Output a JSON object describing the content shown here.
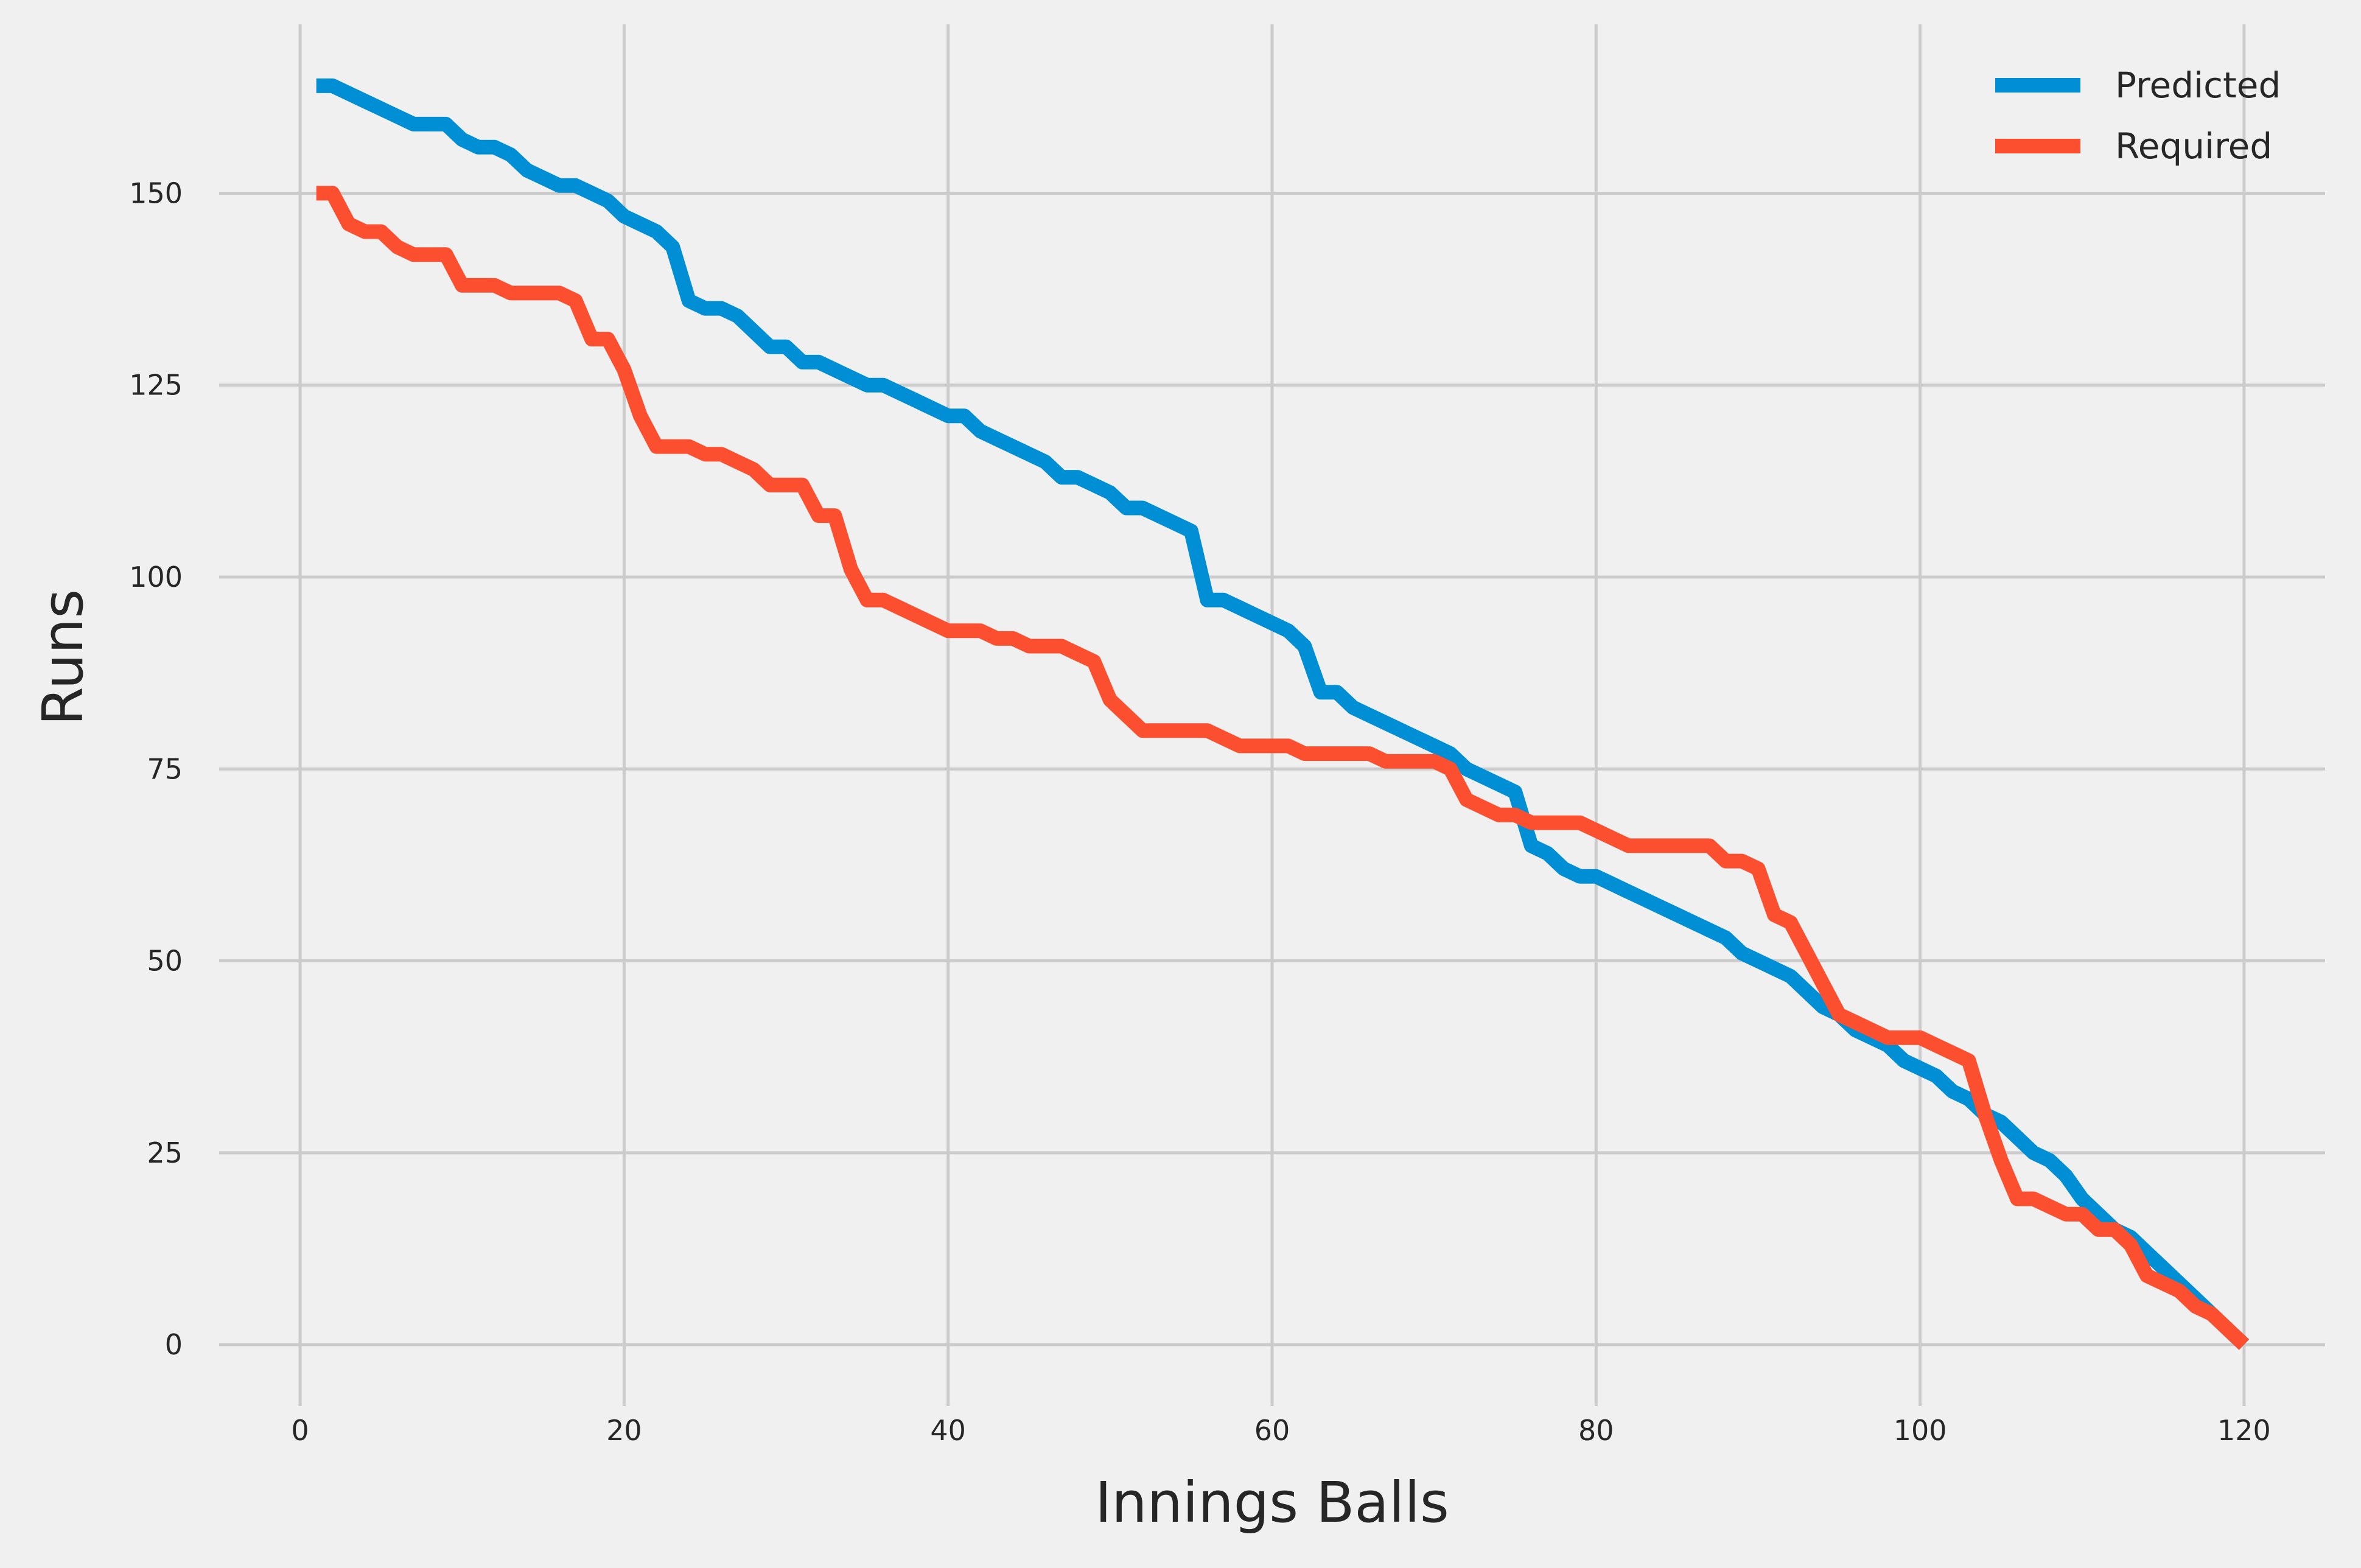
{
  "chart_data": {
    "type": "line",
    "title": "",
    "xlabel": "Innings Balls",
    "ylabel": "Runs",
    "xlim": [
      -5,
      125
    ],
    "ylim": [
      -8,
      172
    ],
    "xticks": [
      0,
      20,
      40,
      60,
      80,
      100,
      120
    ],
    "yticks": [
      0,
      25,
      50,
      75,
      100,
      125,
      150
    ],
    "grid": true,
    "legend_position": "top-right",
    "background": "#f0f0f0",
    "series": [
      {
        "name": "Predicted",
        "color": "#008fd5",
        "points": [
          [
            1,
            164
          ],
          [
            2,
            164
          ],
          [
            3,
            163
          ],
          [
            4,
            162
          ],
          [
            5,
            161
          ],
          [
            6,
            160
          ],
          [
            7,
            159
          ],
          [
            8,
            159
          ],
          [
            9,
            159
          ],
          [
            10,
            157
          ],
          [
            11,
            156
          ],
          [
            12,
            156
          ],
          [
            13,
            155
          ],
          [
            14,
            153
          ],
          [
            15,
            152
          ],
          [
            16,
            151
          ],
          [
            17,
            151
          ],
          [
            18,
            150
          ],
          [
            19,
            149
          ],
          [
            20,
            147
          ],
          [
            21,
            146
          ],
          [
            22,
            145
          ],
          [
            23,
            143
          ],
          [
            24,
            136
          ],
          [
            25,
            135
          ],
          [
            26,
            135
          ],
          [
            27,
            134
          ],
          [
            28,
            132
          ],
          [
            29,
            130
          ],
          [
            30,
            130
          ],
          [
            31,
            128
          ],
          [
            32,
            128
          ],
          [
            33,
            127
          ],
          [
            34,
            126
          ],
          [
            35,
            125
          ],
          [
            36,
            125
          ],
          [
            37,
            124
          ],
          [
            38,
            123
          ],
          [
            39,
            122
          ],
          [
            40,
            121
          ],
          [
            41,
            121
          ],
          [
            42,
            119
          ],
          [
            43,
            118
          ],
          [
            44,
            117
          ],
          [
            45,
            116
          ],
          [
            46,
            115
          ],
          [
            47,
            113
          ],
          [
            48,
            113
          ],
          [
            49,
            112
          ],
          [
            50,
            111
          ],
          [
            51,
            109
          ],
          [
            52,
            109
          ],
          [
            53,
            108
          ],
          [
            54,
            107
          ],
          [
            55,
            106
          ],
          [
            56,
            97
          ],
          [
            57,
            97
          ],
          [
            58,
            96
          ],
          [
            59,
            95
          ],
          [
            60,
            94
          ],
          [
            61,
            93
          ],
          [
            62,
            91
          ],
          [
            63,
            85
          ],
          [
            64,
            85
          ],
          [
            65,
            83
          ],
          [
            66,
            82
          ],
          [
            67,
            81
          ],
          [
            68,
            80
          ],
          [
            69,
            79
          ],
          [
            70,
            78
          ],
          [
            71,
            77
          ],
          [
            72,
            75
          ],
          [
            73,
            74
          ],
          [
            74,
            73
          ],
          [
            75,
            72
          ],
          [
            76,
            65
          ],
          [
            77,
            64
          ],
          [
            78,
            62
          ],
          [
            79,
            61
          ],
          [
            80,
            61
          ],
          [
            81,
            60
          ],
          [
            82,
            59
          ],
          [
            83,
            58
          ],
          [
            84,
            57
          ],
          [
            85,
            56
          ],
          [
            86,
            55
          ],
          [
            87,
            54
          ],
          [
            88,
            53
          ],
          [
            89,
            51
          ],
          [
            90,
            50
          ],
          [
            91,
            49
          ],
          [
            92,
            48
          ],
          [
            93,
            46
          ],
          [
            94,
            44
          ],
          [
            95,
            43
          ],
          [
            96,
            41
          ],
          [
            97,
            40
          ],
          [
            98,
            39
          ],
          [
            99,
            37
          ],
          [
            100,
            36
          ],
          [
            101,
            35
          ],
          [
            102,
            33
          ],
          [
            103,
            32
          ],
          [
            104,
            30
          ],
          [
            105,
            29
          ],
          [
            106,
            27
          ],
          [
            107,
            25
          ],
          [
            108,
            24
          ],
          [
            109,
            22
          ],
          [
            110,
            19
          ],
          [
            111,
            17
          ],
          [
            112,
            15
          ],
          [
            113,
            14
          ],
          [
            114,
            12
          ],
          [
            115,
            10
          ],
          [
            116,
            8
          ],
          [
            117,
            6
          ],
          [
            118,
            4
          ],
          [
            119,
            2
          ],
          [
            120,
            0
          ]
        ]
      },
      {
        "name": "Required",
        "color": "#fc4f30",
        "points": [
          [
            1,
            150
          ],
          [
            2,
            150
          ],
          [
            3,
            146
          ],
          [
            4,
            145
          ],
          [
            5,
            145
          ],
          [
            6,
            143
          ],
          [
            7,
            142
          ],
          [
            8,
            142
          ],
          [
            9,
            142
          ],
          [
            10,
            138
          ],
          [
            11,
            138
          ],
          [
            12,
            138
          ],
          [
            13,
            137
          ],
          [
            14,
            137
          ],
          [
            15,
            137
          ],
          [
            16,
            137
          ],
          [
            17,
            136
          ],
          [
            18,
            131
          ],
          [
            19,
            131
          ],
          [
            20,
            127
          ],
          [
            21,
            121
          ],
          [
            22,
            117
          ],
          [
            23,
            117
          ],
          [
            24,
            117
          ],
          [
            25,
            116
          ],
          [
            26,
            116
          ],
          [
            27,
            115
          ],
          [
            28,
            114
          ],
          [
            29,
            112
          ],
          [
            30,
            112
          ],
          [
            31,
            112
          ],
          [
            32,
            108
          ],
          [
            33,
            108
          ],
          [
            34,
            101
          ],
          [
            35,
            97
          ],
          [
            36,
            97
          ],
          [
            37,
            96
          ],
          [
            38,
            95
          ],
          [
            39,
            94
          ],
          [
            40,
            93
          ],
          [
            41,
            93
          ],
          [
            42,
            93
          ],
          [
            43,
            92
          ],
          [
            44,
            92
          ],
          [
            45,
            91
          ],
          [
            46,
            91
          ],
          [
            47,
            91
          ],
          [
            48,
            90
          ],
          [
            49,
            89
          ],
          [
            50,
            84
          ],
          [
            51,
            82
          ],
          [
            52,
            80
          ],
          [
            53,
            80
          ],
          [
            54,
            80
          ],
          [
            55,
            80
          ],
          [
            56,
            80
          ],
          [
            57,
            79
          ],
          [
            58,
            78
          ],
          [
            59,
            78
          ],
          [
            60,
            78
          ],
          [
            61,
            78
          ],
          [
            62,
            77
          ],
          [
            63,
            77
          ],
          [
            64,
            77
          ],
          [
            65,
            77
          ],
          [
            66,
            77
          ],
          [
            67,
            76
          ],
          [
            68,
            76
          ],
          [
            69,
            76
          ],
          [
            70,
            76
          ],
          [
            71,
            75
          ],
          [
            72,
            71
          ],
          [
            73,
            70
          ],
          [
            74,
            69
          ],
          [
            75,
            69
          ],
          [
            76,
            68
          ],
          [
            77,
            68
          ],
          [
            78,
            68
          ],
          [
            79,
            68
          ],
          [
            80,
            67
          ],
          [
            81,
            66
          ],
          [
            82,
            65
          ],
          [
            83,
            65
          ],
          [
            84,
            65
          ],
          [
            85,
            65
          ],
          [
            86,
            65
          ],
          [
            87,
            65
          ],
          [
            88,
            63
          ],
          [
            89,
            63
          ],
          [
            90,
            62
          ],
          [
            91,
            56
          ],
          [
            92,
            55
          ],
          [
            93,
            51
          ],
          [
            94,
            47
          ],
          [
            95,
            43
          ],
          [
            96,
            42
          ],
          [
            97,
            41
          ],
          [
            98,
            40
          ],
          [
            99,
            40
          ],
          [
            100,
            40
          ],
          [
            101,
            39
          ],
          [
            102,
            38
          ],
          [
            103,
            37
          ],
          [
            104,
            30
          ],
          [
            105,
            24
          ],
          [
            106,
            19
          ],
          [
            107,
            19
          ],
          [
            108,
            18
          ],
          [
            109,
            17
          ],
          [
            110,
            17
          ],
          [
            111,
            15
          ],
          [
            112,
            15
          ],
          [
            113,
            13
          ],
          [
            114,
            9
          ],
          [
            115,
            8
          ],
          [
            116,
            7
          ],
          [
            117,
            5
          ],
          [
            118,
            4
          ],
          [
            119,
            2
          ],
          [
            120,
            0
          ]
        ]
      }
    ]
  }
}
